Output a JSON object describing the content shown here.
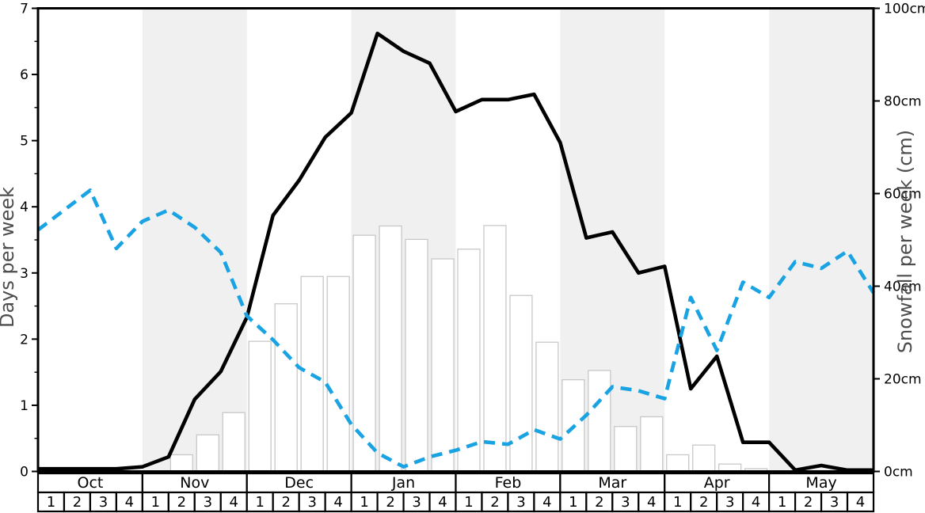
{
  "chart_data": {
    "type": "line+bar",
    "title": "",
    "left_axis": {
      "label": "Days per week",
      "range": [
        0,
        7
      ],
      "ticks": [
        "0",
        "1",
        "2",
        "3",
        "4",
        "5",
        "6",
        "7"
      ],
      "minor_tick_step": 0.5
    },
    "right_axis": {
      "label": "Snowfall per week (cm)",
      "range": [
        0,
        100
      ],
      "ticks": [
        "0cm",
        "20cm",
        "40cm",
        "60cm",
        "80cm",
        "100cm"
      ]
    },
    "x_axis": {
      "months": [
        "Oct",
        "Nov",
        "Dec",
        "Jan",
        "Feb",
        "Mar",
        "Apr",
        "May"
      ],
      "weeks_per_month": 4,
      "week_labels": [
        "1",
        "2",
        "3",
        "4"
      ],
      "shaded_months": [
        "Nov",
        "Jan",
        "Mar",
        "May"
      ]
    },
    "series": [
      {
        "id": "black-solid-line",
        "axis": "left",
        "style": "solid",
        "color": "#000000",
        "values": [
          0.04,
          0.04,
          0.04,
          0.04,
          0.07,
          0.22,
          1.09,
          1.51,
          2.33,
          3.87,
          4.4,
          5.05,
          5.42,
          6.62,
          6.35,
          6.17,
          5.44,
          5.62,
          5.62,
          5.7,
          4.97,
          3.53,
          3.62,
          3.0,
          3.1,
          1.25,
          1.74,
          0.44,
          0.44,
          0.02,
          0.09,
          0.02
        ],
        "edge_value": 0.02
      },
      {
        "id": "blue-dashed-line",
        "axis": "left",
        "style": "dashed",
        "color": "#1aa3e3",
        "values": [
          3.65,
          3.95,
          4.25,
          3.37,
          3.78,
          3.95,
          3.69,
          3.31,
          2.35,
          1.99,
          1.57,
          1.35,
          0.71,
          0.28,
          0.07,
          0.22,
          0.32,
          0.45,
          0.41,
          0.63,
          0.49,
          0.85,
          1.28,
          1.22,
          1.1,
          2.63,
          1.83,
          2.86,
          2.63,
          3.17,
          3.07,
          3.33
        ],
        "edge_value": 2.7
      }
    ],
    "bars": {
      "id": "snowfall-bars",
      "axis": "right",
      "unit": "cm",
      "fill": "#ffffff",
      "border": "#c8c8c8",
      "values_cm": [
        0,
        0,
        0,
        0,
        0,
        3.6,
        7.9,
        12.7,
        28.1,
        36.2,
        42.1,
        42.1,
        51.0,
        53.0,
        50.1,
        45.9,
        48.0,
        53.1,
        38.0,
        27.9,
        19.8,
        21.8,
        9.7,
        11.8,
        3.6,
        5.7,
        1.6,
        0.6,
        0,
        0,
        0,
        0
      ]
    },
    "colors": {
      "band_shade": "#f0f0f0",
      "frame": "#000000",
      "axis_title": "#4d4d4d"
    }
  }
}
